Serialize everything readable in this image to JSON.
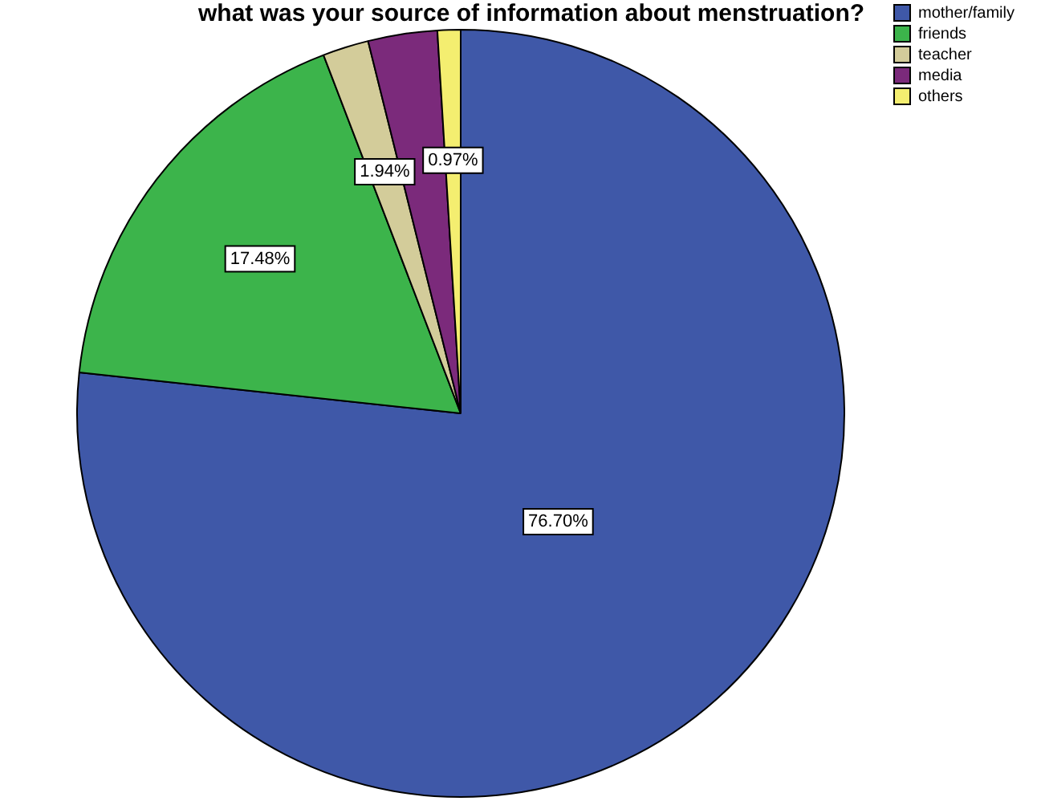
{
  "chart_data": {
    "type": "pie",
    "title": "what was your source of information about menstruation?",
    "categories": [
      "mother/family",
      "friends",
      "teacher",
      "media",
      "others"
    ],
    "values": [
      76.7,
      17.48,
      1.94,
      2.91,
      0.97
    ],
    "colors": [
      "#3f58a8",
      "#3cb44b",
      "#d3cc9a",
      "#7b2a7b",
      "#f4ee70"
    ],
    "value_labels": [
      "76.70%",
      "17.48%",
      "1.94%",
      null,
      "0.97%"
    ],
    "legend": "top right"
  }
}
